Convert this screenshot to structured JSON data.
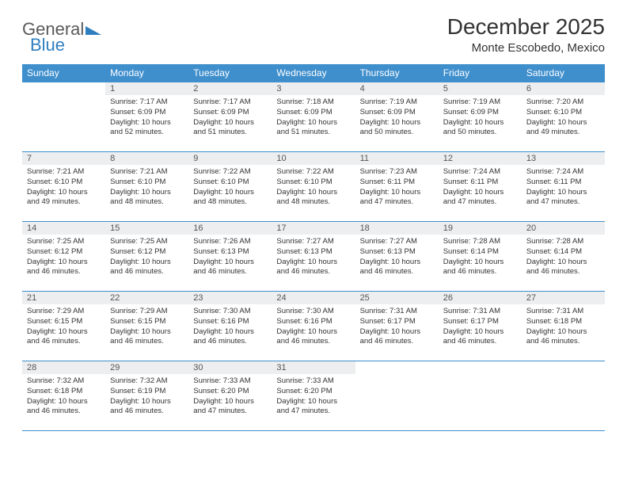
{
  "brand": {
    "part1": "General",
    "part2": "Blue"
  },
  "title": "December 2025",
  "location": "Monte Escobedo, Mexico",
  "colors": {
    "header_bg": "#3f8fcd",
    "header_text": "#ffffff",
    "daynum_bg": "#eceeef",
    "text": "#333333",
    "brand_blue": "#2f7fc0",
    "brand_gray": "#5a5a5a"
  },
  "weekdays": [
    "Sunday",
    "Monday",
    "Tuesday",
    "Wednesday",
    "Thursday",
    "Friday",
    "Saturday"
  ],
  "weeks": [
    [
      {
        "n": "",
        "sr": "",
        "ss": "",
        "dl": ""
      },
      {
        "n": "1",
        "sr": "7:17 AM",
        "ss": "6:09 PM",
        "dl": "10 hours and 52 minutes."
      },
      {
        "n": "2",
        "sr": "7:17 AM",
        "ss": "6:09 PM",
        "dl": "10 hours and 51 minutes."
      },
      {
        "n": "3",
        "sr": "7:18 AM",
        "ss": "6:09 PM",
        "dl": "10 hours and 51 minutes."
      },
      {
        "n": "4",
        "sr": "7:19 AM",
        "ss": "6:09 PM",
        "dl": "10 hours and 50 minutes."
      },
      {
        "n": "5",
        "sr": "7:19 AM",
        "ss": "6:09 PM",
        "dl": "10 hours and 50 minutes."
      },
      {
        "n": "6",
        "sr": "7:20 AM",
        "ss": "6:10 PM",
        "dl": "10 hours and 49 minutes."
      }
    ],
    [
      {
        "n": "7",
        "sr": "7:21 AM",
        "ss": "6:10 PM",
        "dl": "10 hours and 49 minutes."
      },
      {
        "n": "8",
        "sr": "7:21 AM",
        "ss": "6:10 PM",
        "dl": "10 hours and 48 minutes."
      },
      {
        "n": "9",
        "sr": "7:22 AM",
        "ss": "6:10 PM",
        "dl": "10 hours and 48 minutes."
      },
      {
        "n": "10",
        "sr": "7:22 AM",
        "ss": "6:10 PM",
        "dl": "10 hours and 48 minutes."
      },
      {
        "n": "11",
        "sr": "7:23 AM",
        "ss": "6:11 PM",
        "dl": "10 hours and 47 minutes."
      },
      {
        "n": "12",
        "sr": "7:24 AM",
        "ss": "6:11 PM",
        "dl": "10 hours and 47 minutes."
      },
      {
        "n": "13",
        "sr": "7:24 AM",
        "ss": "6:11 PM",
        "dl": "10 hours and 47 minutes."
      }
    ],
    [
      {
        "n": "14",
        "sr": "7:25 AM",
        "ss": "6:12 PM",
        "dl": "10 hours and 46 minutes."
      },
      {
        "n": "15",
        "sr": "7:25 AM",
        "ss": "6:12 PM",
        "dl": "10 hours and 46 minutes."
      },
      {
        "n": "16",
        "sr": "7:26 AM",
        "ss": "6:13 PM",
        "dl": "10 hours and 46 minutes."
      },
      {
        "n": "17",
        "sr": "7:27 AM",
        "ss": "6:13 PM",
        "dl": "10 hours and 46 minutes."
      },
      {
        "n": "18",
        "sr": "7:27 AM",
        "ss": "6:13 PM",
        "dl": "10 hours and 46 minutes."
      },
      {
        "n": "19",
        "sr": "7:28 AM",
        "ss": "6:14 PM",
        "dl": "10 hours and 46 minutes."
      },
      {
        "n": "20",
        "sr": "7:28 AM",
        "ss": "6:14 PM",
        "dl": "10 hours and 46 minutes."
      }
    ],
    [
      {
        "n": "21",
        "sr": "7:29 AM",
        "ss": "6:15 PM",
        "dl": "10 hours and 46 minutes."
      },
      {
        "n": "22",
        "sr": "7:29 AM",
        "ss": "6:15 PM",
        "dl": "10 hours and 46 minutes."
      },
      {
        "n": "23",
        "sr": "7:30 AM",
        "ss": "6:16 PM",
        "dl": "10 hours and 46 minutes."
      },
      {
        "n": "24",
        "sr": "7:30 AM",
        "ss": "6:16 PM",
        "dl": "10 hours and 46 minutes."
      },
      {
        "n": "25",
        "sr": "7:31 AM",
        "ss": "6:17 PM",
        "dl": "10 hours and 46 minutes."
      },
      {
        "n": "26",
        "sr": "7:31 AM",
        "ss": "6:17 PM",
        "dl": "10 hours and 46 minutes."
      },
      {
        "n": "27",
        "sr": "7:31 AM",
        "ss": "6:18 PM",
        "dl": "10 hours and 46 minutes."
      }
    ],
    [
      {
        "n": "28",
        "sr": "7:32 AM",
        "ss": "6:18 PM",
        "dl": "10 hours and 46 minutes."
      },
      {
        "n": "29",
        "sr": "7:32 AM",
        "ss": "6:19 PM",
        "dl": "10 hours and 46 minutes."
      },
      {
        "n": "30",
        "sr": "7:33 AM",
        "ss": "6:20 PM",
        "dl": "10 hours and 47 minutes."
      },
      {
        "n": "31",
        "sr": "7:33 AM",
        "ss": "6:20 PM",
        "dl": "10 hours and 47 minutes."
      },
      {
        "n": "",
        "sr": "",
        "ss": "",
        "dl": ""
      },
      {
        "n": "",
        "sr": "",
        "ss": "",
        "dl": ""
      },
      {
        "n": "",
        "sr": "",
        "ss": "",
        "dl": ""
      }
    ]
  ],
  "labels": {
    "sunrise": "Sunrise:",
    "sunset": "Sunset:",
    "daylight": "Daylight:"
  }
}
